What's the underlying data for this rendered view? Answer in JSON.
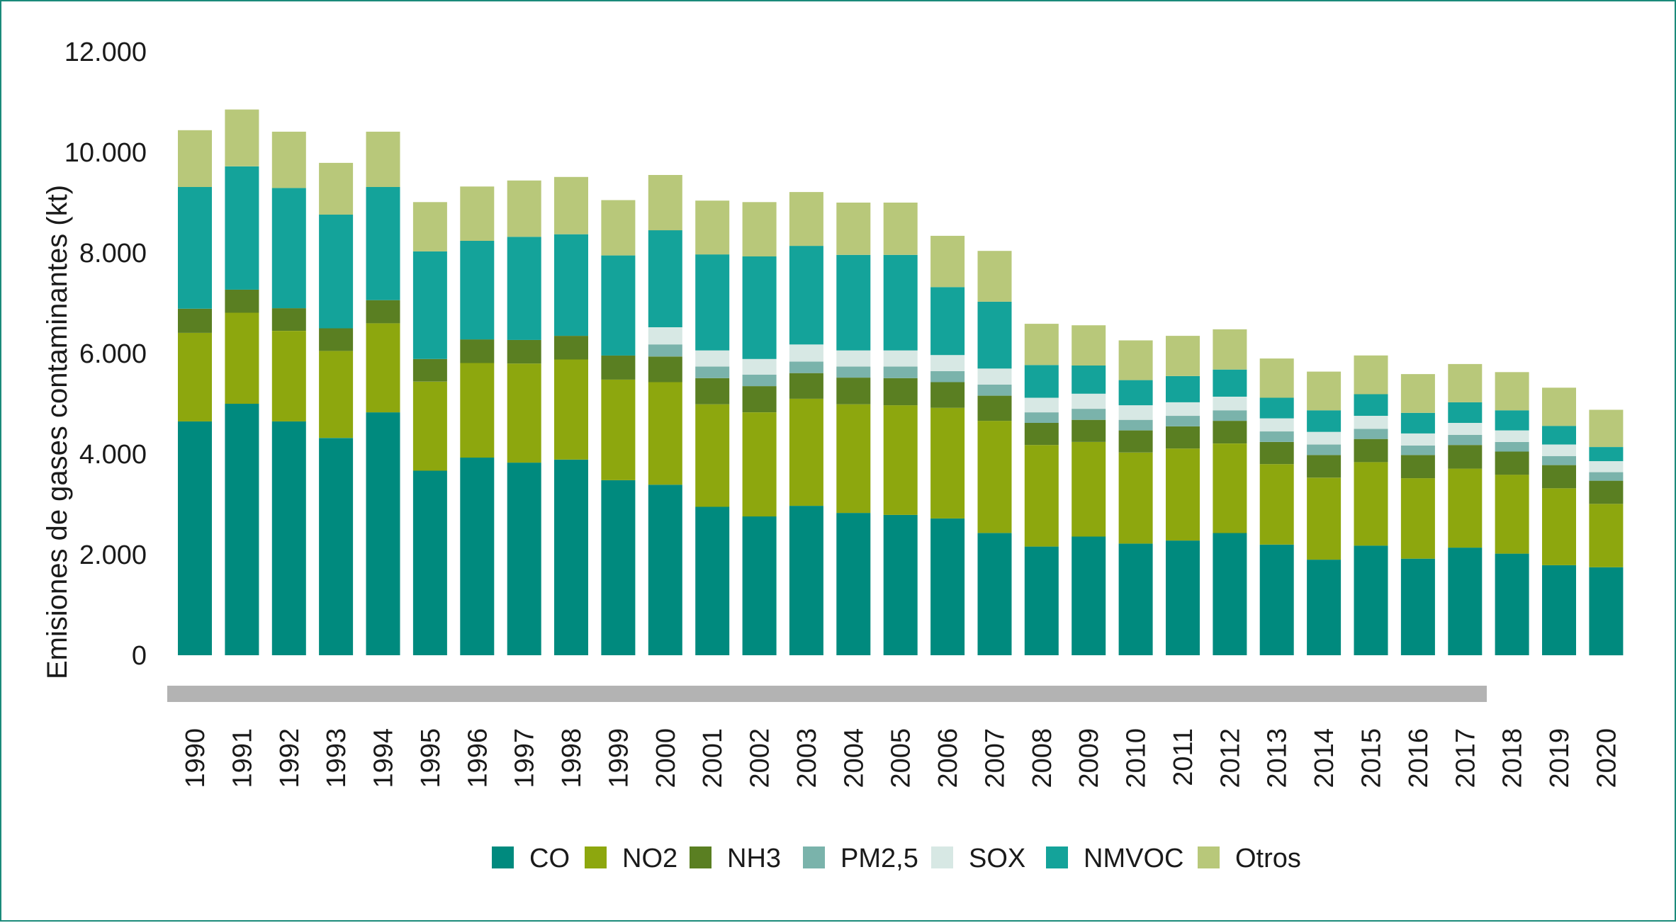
{
  "chart_data": {
    "type": "bar",
    "stacked": true,
    "title": "",
    "xlabel": "",
    "ylabel": "Emisiones de gases contaminantes (kt)",
    "ylim": [
      0,
      12000
    ],
    "yticks": [
      0,
      2000,
      4000,
      6000,
      8000,
      10000,
      12000
    ],
    "ytick_labels": [
      "0",
      "2.000",
      "4.000",
      "6.000",
      "8.000",
      "10.000",
      "12.000"
    ],
    "grid": false,
    "legend_position": "bottom",
    "categories": [
      "1990",
      "1991",
      "1992",
      "1993",
      "1994",
      "1995",
      "1996",
      "1997",
      "1998",
      "1999",
      "2000",
      "2001",
      "2002",
      "2003",
      "2004",
      "2005",
      "2006",
      "2007",
      "2008",
      "2009",
      "2010",
      "2011",
      "2012",
      "2013",
      "2014",
      "2015",
      "2016",
      "2017",
      "2018",
      "2019",
      "2020"
    ],
    "series": [
      {
        "name": "CO",
        "color": "#008a7e",
        "values": [
          4650,
          5000,
          4650,
          4320,
          4830,
          3670,
          3930,
          3830,
          3890,
          3480,
          3390,
          2950,
          2760,
          2970,
          2830,
          2790,
          2720,
          2430,
          2160,
          2360,
          2220,
          2280,
          2430,
          2200,
          1900,
          2180,
          1920,
          2140,
          2020,
          1790,
          1750
        ]
      },
      {
        "name": "NO2",
        "color": "#8da70e",
        "values": [
          1760,
          1810,
          1800,
          1730,
          1770,
          1770,
          1880,
          1970,
          1990,
          2000,
          2040,
          2040,
          2070,
          2130,
          2160,
          2180,
          2200,
          2230,
          2020,
          1880,
          1810,
          1830,
          1780,
          1600,
          1630,
          1660,
          1600,
          1570,
          1570,
          1530,
          1260
        ]
      },
      {
        "name": "NH3",
        "color": "#5a7f22",
        "values": [
          480,
          460,
          450,
          450,
          460,
          450,
          470,
          470,
          470,
          480,
          510,
          520,
          520,
          510,
          530,
          540,
          510,
          500,
          440,
          440,
          440,
          440,
          450,
          440,
          450,
          460,
          460,
          470,
          460,
          460,
          460
        ]
      },
      {
        "name": "PM2,5",
        "color": "#7ab3ab",
        "values": [
          0,
          0,
          0,
          0,
          0,
          0,
          0,
          0,
          0,
          0,
          240,
          230,
          230,
          230,
          220,
          230,
          220,
          220,
          210,
          220,
          210,
          210,
          210,
          210,
          210,
          200,
          190,
          200,
          190,
          180,
          170
        ]
      },
      {
        "name": "SOX",
        "color": "#d7e8e4",
        "values": [
          0,
          0,
          0,
          0,
          0,
          0,
          0,
          0,
          0,
          0,
          340,
          320,
          310,
          340,
          320,
          320,
          320,
          320,
          290,
          300,
          290,
          270,
          270,
          260,
          250,
          260,
          240,
          240,
          230,
          230,
          220
        ]
      },
      {
        "name": "NMVOC",
        "color": "#14a39a",
        "values": [
          2420,
          2450,
          2390,
          2260,
          2250,
          2140,
          1960,
          2050,
          2020,
          1990,
          1930,
          1910,
          2040,
          1960,
          1900,
          1900,
          1350,
          1330,
          650,
          560,
          500,
          520,
          540,
          410,
          430,
          430,
          410,
          410,
          400,
          370,
          280
        ]
      },
      {
        "name": "Otros",
        "color": "#b8c87a",
        "values": [
          1130,
          1130,
          1120,
          1030,
          1100,
          980,
          1080,
          1120,
          1140,
          1100,
          1100,
          1070,
          1080,
          1070,
          1040,
          1040,
          1020,
          1010,
          820,
          800,
          790,
          800,
          800,
          780,
          770,
          770,
          770,
          760,
          760,
          760,
          740
        ]
      }
    ]
  }
}
